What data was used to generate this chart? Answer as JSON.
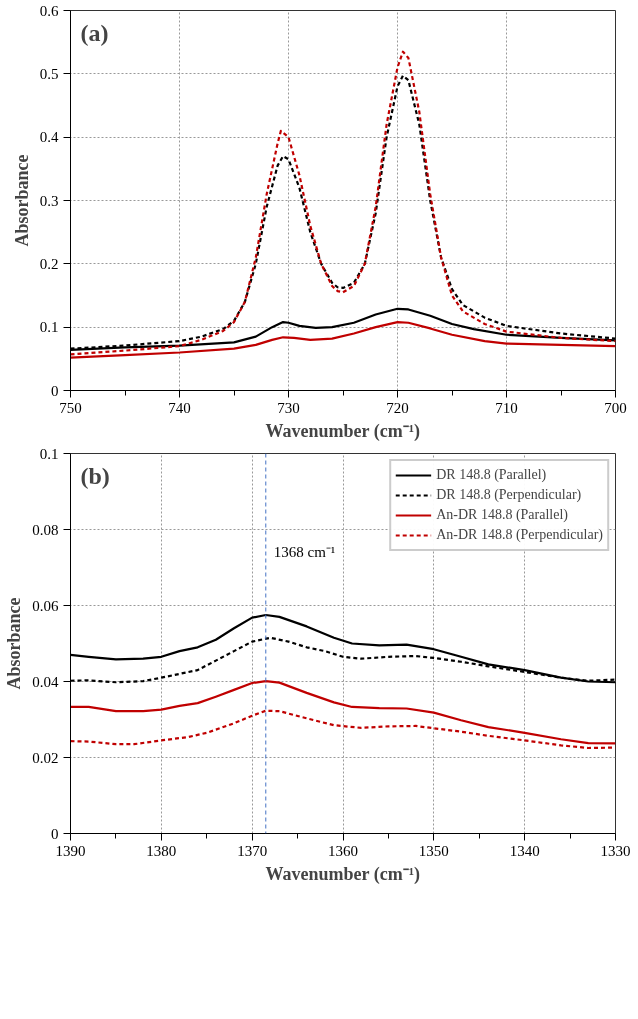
{
  "chart_data": [
    {
      "type": "line",
      "xlabel": "Wavenumber (cm⁻¹)",
      "ylabel": "Absorbance",
      "annotations": [
        "(a)"
      ],
      "xlim": [
        750,
        700
      ],
      "xticks": [
        750,
        {
          "value": 745,
          "label": null
        },
        740,
        {
          "value": 735,
          "label": null
        },
        730,
        {
          "value": 725,
          "label": null
        },
        720,
        {
          "value": 715,
          "label": null
        },
        710,
        {
          "value": 705,
          "label": null
        },
        700
      ],
      "ylim": [
        0,
        0.6
      ],
      "yticks": [
        0,
        0.1,
        0.2,
        0.3,
        0.4,
        0.5,
        0.6
      ],
      "grid": true,
      "legend": false,
      "series": [
        {
          "color": "#000000",
          "line_style": "solid",
          "x": [
            750,
            745,
            740,
            735,
            733,
            731.5,
            730.5,
            730,
            729,
            727.5,
            726,
            724,
            722,
            720,
            719,
            717,
            715,
            713,
            710,
            705,
            700
          ],
          "values": [
            0.064,
            0.068,
            0.071,
            0.076,
            0.085,
            0.1,
            0.108,
            0.107,
            0.102,
            0.099,
            0.1,
            0.107,
            0.12,
            0.129,
            0.128,
            0.118,
            0.105,
            0.097,
            0.088,
            0.083,
            0.079
          ]
        },
        {
          "color": "#000000",
          "line_style": "dashed",
          "x": [
            750,
            745,
            740,
            738,
            736,
            735,
            734,
            733,
            732,
            731,
            730.5,
            730,
            729,
            728,
            727,
            726,
            725.5,
            725,
            724,
            723,
            722,
            721,
            720,
            719.5,
            719,
            718,
            717,
            716,
            715,
            714,
            712,
            710,
            705,
            700
          ],
          "values": [
            0.066,
            0.071,
            0.078,
            0.085,
            0.097,
            0.11,
            0.14,
            0.2,
            0.29,
            0.355,
            0.37,
            0.365,
            0.32,
            0.25,
            0.2,
            0.17,
            0.163,
            0.162,
            0.17,
            0.2,
            0.28,
            0.4,
            0.48,
            0.497,
            0.49,
            0.42,
            0.3,
            0.21,
            0.16,
            0.135,
            0.115,
            0.102,
            0.09,
            0.082
          ]
        },
        {
          "color": "#c00000",
          "line_style": "solid",
          "x": [
            750,
            745,
            740,
            735,
            733,
            731.5,
            730.5,
            729.5,
            728,
            726,
            724,
            722,
            720,
            719,
            717,
            715,
            712,
            710,
            705,
            700
          ],
          "values": [
            0.052,
            0.056,
            0.06,
            0.066,
            0.072,
            0.08,
            0.084,
            0.083,
            0.08,
            0.082,
            0.09,
            0.1,
            0.108,
            0.107,
            0.098,
            0.088,
            0.078,
            0.074,
            0.072,
            0.07
          ]
        },
        {
          "color": "#c00000",
          "line_style": "dashed",
          "x": [
            750,
            745,
            740,
            738,
            736,
            735,
            734,
            733,
            732,
            731,
            730.7,
            730,
            729,
            728,
            727,
            726,
            725.5,
            725,
            724,
            723,
            722,
            721,
            720,
            719.5,
            719,
            718,
            717,
            716,
            715,
            714,
            712,
            710,
            705,
            700
          ],
          "values": [
            0.057,
            0.063,
            0.07,
            0.08,
            0.094,
            0.108,
            0.14,
            0.21,
            0.31,
            0.39,
            0.41,
            0.4,
            0.34,
            0.26,
            0.2,
            0.165,
            0.157,
            0.155,
            0.165,
            0.2,
            0.29,
            0.42,
            0.51,
            0.535,
            0.525,
            0.44,
            0.31,
            0.21,
            0.15,
            0.125,
            0.105,
            0.093,
            0.083,
            0.078
          ]
        }
      ]
    },
    {
      "type": "line",
      "xlabel": "Wavenumber (cm⁻¹)",
      "ylabel": "Absorbance",
      "annotations": [
        "(b)"
      ],
      "xlim": [
        1390,
        1330
      ],
      "xticks": [
        1390,
        {
          "value": 1385,
          "label": null
        },
        1380,
        {
          "value": 1375,
          "label": null
        },
        1370,
        {
          "value": 1365,
          "label": null
        },
        1360,
        {
          "value": 1355,
          "label": null
        },
        1350,
        {
          "value": 1345,
          "label": null
        },
        1340,
        {
          "value": 1335,
          "label": null
        },
        1330
      ],
      "ylim": [
        0,
        0.1
      ],
      "yticks": [
        0,
        0.02,
        0.04,
        0.06,
        0.08,
        0.1
      ],
      "grid": true,
      "legend": "top right",
      "ref_lines": [
        {
          "axis": "x",
          "value": 1368.5,
          "label": "1368 cm⁻¹",
          "color": "#4472c4",
          "line_style": "dashed"
        }
      ],
      "series": [
        {
          "name": "DR 148.8 (Parallel)",
          "color": "#000000",
          "line_style": "solid",
          "x": [
            1390,
            1388,
            1385,
            1382,
            1380,
            1378,
            1376,
            1374,
            1372,
            1370,
            1368.5,
            1367,
            1364,
            1361,
            1359,
            1356,
            1353,
            1350,
            1347,
            1344,
            1340,
            1336,
            1333,
            1330
          ],
          "values": [
            0.047,
            0.0465,
            0.0458,
            0.046,
            0.0465,
            0.048,
            0.049,
            0.051,
            0.054,
            0.0568,
            0.0575,
            0.057,
            0.0545,
            0.0515,
            0.05,
            0.0495,
            0.0497,
            0.0485,
            0.0465,
            0.0445,
            0.043,
            0.041,
            0.04,
            0.0398
          ]
        },
        {
          "name": "DR 148.8 (Perpendicular)",
          "color": "#000000",
          "line_style": "dashed",
          "x": [
            1390,
            1388,
            1385,
            1382,
            1380,
            1378,
            1376,
            1374,
            1372,
            1370,
            1368,
            1366,
            1364,
            1362,
            1360,
            1358,
            1355,
            1352,
            1350,
            1347,
            1344,
            1340,
            1336,
            1333,
            1330
          ],
          "values": [
            0.0402,
            0.0403,
            0.0398,
            0.0401,
            0.041,
            0.042,
            0.043,
            0.0455,
            0.048,
            0.0505,
            0.0515,
            0.0505,
            0.049,
            0.048,
            0.0465,
            0.046,
            0.0465,
            0.0467,
            0.0462,
            0.0452,
            0.044,
            0.0425,
            0.041,
            0.0402,
            0.0405
          ]
        },
        {
          "name": "An-DR 148.8 (Parallel)",
          "color": "#c00000",
          "line_style": "solid",
          "x": [
            1390,
            1388,
            1385,
            1382,
            1380,
            1378,
            1376,
            1374,
            1372,
            1370,
            1368.5,
            1367,
            1364,
            1361,
            1359,
            1356,
            1353,
            1350,
            1347,
            1344,
            1340,
            1336,
            1333,
            1330
          ],
          "values": [
            0.0333,
            0.0333,
            0.0322,
            0.0322,
            0.0326,
            0.0336,
            0.0343,
            0.036,
            0.0378,
            0.0396,
            0.0401,
            0.0397,
            0.037,
            0.0345,
            0.0333,
            0.033,
            0.0329,
            0.0318,
            0.0298,
            0.028,
            0.0265,
            0.0248,
            0.0238,
            0.0237
          ]
        },
        {
          "name": "An-DR 148.8 (Perpendicular)",
          "color": "#c00000",
          "line_style": "dashed",
          "x": [
            1390,
            1388,
            1385,
            1383,
            1380,
            1377,
            1375,
            1372,
            1370,
            1368.5,
            1367,
            1364,
            1361,
            1358,
            1355,
            1352,
            1350,
            1347,
            1344,
            1340,
            1336,
            1333,
            1330
          ],
          "values": [
            0.0243,
            0.0242,
            0.0235,
            0.0235,
            0.0245,
            0.0254,
            0.0265,
            0.029,
            0.031,
            0.0323,
            0.0322,
            0.0303,
            0.0285,
            0.0278,
            0.0282,
            0.0283,
            0.0277,
            0.0268,
            0.0257,
            0.0245,
            0.0232,
            0.0225,
            0.0226
          ]
        }
      ]
    }
  ]
}
